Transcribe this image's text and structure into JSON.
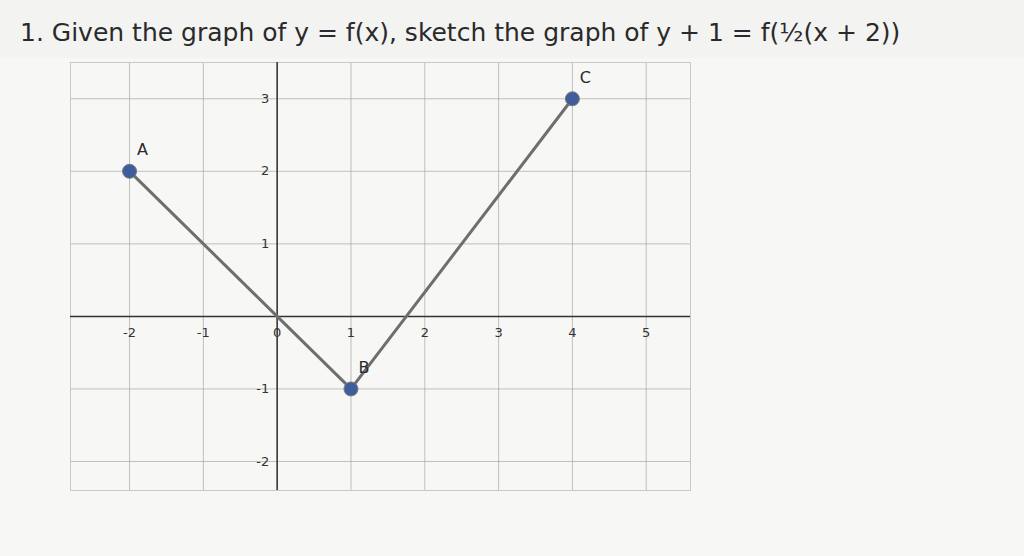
{
  "chart_data": {
    "type": "line",
    "title": "1. Given the graph of y = f(x), sketch the graph of y + 1 = f(½(x + 2))",
    "x": [
      -2,
      1,
      4
    ],
    "values": [
      2,
      -1,
      3
    ],
    "color": "#6e6e6e",
    "marker": "circle",
    "xlim": [
      -2.8,
      5.6
    ],
    "ylim": [
      -2.4,
      3.5
    ],
    "xticks": [
      -2,
      -1,
      0,
      1,
      2,
      3,
      4,
      5
    ],
    "yticks": [
      -2,
      -1,
      1,
      2,
      3
    ],
    "grid": true,
    "annotations": [
      {
        "text": "A",
        "x": -2,
        "y": 2
      },
      {
        "text": "B",
        "x": 1,
        "y": -1
      },
      {
        "text": "C",
        "x": 4,
        "y": 3
      }
    ]
  }
}
